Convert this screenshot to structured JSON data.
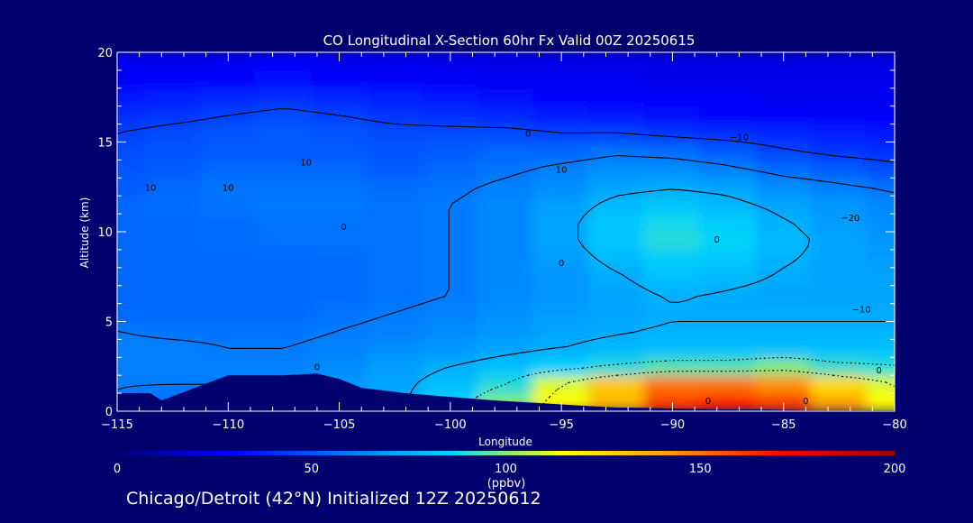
{
  "chart_data": {
    "type": "heatmap",
    "title": "CO Longitudinal X-Section 60hr  Fx Valid 00Z 20250615",
    "xlabel": "Longitude",
    "ylabel": "Altitude (km)",
    "xlim": [
      -115,
      -80
    ],
    "ylim": [
      0,
      20
    ],
    "x_ticks": [
      -115,
      -110,
      -105,
      -100,
      -95,
      -90,
      -85,
      -80
    ],
    "x_tick_labels": [
      "−115",
      "−110",
      "−105",
      "−100",
      "−95",
      "−90",
      "−85",
      "−80"
    ],
    "y_ticks": [
      0,
      5,
      10,
      15,
      20
    ],
    "y_tick_labels": [
      "0",
      "5",
      "10",
      "15",
      "20"
    ],
    "x": [
      -115,
      -112.5,
      -110,
      -107.5,
      -105,
      -102.5,
      -100,
      -97.5,
      -95,
      -92.5,
      -90,
      -87.5,
      -85,
      -82.5,
      -80
    ],
    "y": [
      0.5,
      1.5,
      2.5,
      3.5,
      4.5,
      5.5,
      6.5,
      7.5,
      8.5,
      9.5,
      10.5,
      11.5,
      12.5,
      13.5,
      14.5,
      15.5,
      16.5,
      17.5,
      18.5,
      19.5
    ],
    "z": [
      [
        60,
        58,
        58,
        62,
        68,
        72,
        85,
        100,
        115,
        135,
        160,
        165,
        160,
        140,
        115
      ],
      [
        60,
        60,
        60,
        62,
        68,
        72,
        80,
        90,
        110,
        130,
        150,
        150,
        145,
        125,
        110
      ],
      [
        62,
        62,
        62,
        62,
        65,
        70,
        75,
        80,
        85,
        90,
        95,
        95,
        100,
        92,
        90
      ],
      [
        62,
        62,
        60,
        60,
        62,
        66,
        68,
        72,
        75,
        78,
        80,
        80,
        80,
        80,
        80
      ],
      [
        60,
        58,
        58,
        58,
        60,
        62,
        65,
        68,
        72,
        74,
        76,
        76,
        76,
        76,
        76
      ],
      [
        55,
        55,
        55,
        55,
        58,
        60,
        62,
        66,
        70,
        72,
        74,
        74,
        74,
        74,
        74
      ],
      [
        55,
        55,
        55,
        55,
        56,
        58,
        60,
        64,
        68,
        72,
        76,
        74,
        72,
        72,
        72
      ],
      [
        55,
        55,
        55,
        55,
        56,
        58,
        60,
        64,
        68,
        74,
        80,
        78,
        74,
        72,
        72
      ],
      [
        55,
        55,
        55,
        55,
        56,
        58,
        60,
        64,
        70,
        78,
        84,
        82,
        76,
        72,
        70
      ],
      [
        55,
        55,
        56,
        58,
        58,
        58,
        60,
        64,
        72,
        82,
        90,
        86,
        78,
        72,
        68
      ],
      [
        55,
        55,
        56,
        58,
        58,
        58,
        60,
        64,
        72,
        82,
        88,
        84,
        76,
        70,
        66
      ],
      [
        55,
        56,
        58,
        60,
        60,
        58,
        60,
        64,
        70,
        78,
        82,
        78,
        72,
        68,
        64
      ],
      [
        52,
        55,
        58,
        58,
        58,
        56,
        58,
        62,
        66,
        72,
        74,
        72,
        66,
        62,
        58
      ],
      [
        50,
        52,
        55,
        55,
        55,
        52,
        55,
        58,
        62,
        66,
        66,
        62,
        56,
        52,
        48
      ],
      [
        48,
        50,
        52,
        52,
        52,
        50,
        52,
        55,
        55,
        58,
        56,
        52,
        46,
        42,
        40
      ],
      [
        45,
        48,
        50,
        52,
        50,
        48,
        48,
        48,
        45,
        45,
        42,
        40,
        38,
        36,
        34
      ],
      [
        40,
        42,
        45,
        48,
        45,
        42,
        40,
        38,
        36,
        34,
        32,
        30,
        30,
        28,
        28
      ],
      [
        34,
        36,
        38,
        40,
        38,
        36,
        34,
        32,
        30,
        30,
        28,
        28,
        26,
        26,
        26
      ],
      [
        28,
        30,
        30,
        32,
        30,
        28,
        28,
        26,
        26,
        26,
        24,
        24,
        24,
        24,
        24
      ],
      [
        26,
        26,
        26,
        28,
        26,
        26,
        24,
        24,
        24,
        24,
        22,
        22,
        22,
        22,
        22
      ]
    ],
    "terrain": {
      "x": [
        -115,
        -113.5,
        -113,
        -110,
        -107.5,
        -106,
        -105,
        -104,
        -102,
        -100,
        -98,
        -96,
        -94,
        -92.5,
        -92,
        -90,
        -88,
        -86,
        -84,
        -82,
        -80
      ],
      "y": [
        1.0,
        1.0,
        0.6,
        2.0,
        2.0,
        2.1,
        1.8,
        1.3,
        1.0,
        0.8,
        0.6,
        0.45,
        0.3,
        0.2,
        0.2,
        0.15,
        0.1,
        0.1,
        0.05,
        0.05,
        0.05
      ]
    },
    "contour_labels": [
      {
        "text": "10",
        "x": -106.5,
        "y": 13.9
      },
      {
        "text": "10",
        "x": -110,
        "y": 12.5
      },
      {
        "text": "10",
        "x": -113.5,
        "y": 12.5
      },
      {
        "text": "10",
        "x": -95,
        "y": 13.5
      },
      {
        "text": "0",
        "x": -96.5,
        "y": 15.5
      },
      {
        "text": "0",
        "x": -95,
        "y": 8.3
      },
      {
        "text": "0",
        "x": -104.8,
        "y": 10.3
      },
      {
        "text": "0",
        "x": -106,
        "y": 2.5
      },
      {
        "text": "0",
        "x": -88,
        "y": 9.6
      },
      {
        "text": "0",
        "x": -88.4,
        "y": 0.6
      },
      {
        "text": "0",
        "x": -84,
        "y": 0.6
      },
      {
        "text": "0",
        "x": -80.7,
        "y": 2.3
      },
      {
        "text": "−10",
        "x": -87,
        "y": 15.3
      },
      {
        "text": "−20",
        "x": -82,
        "y": 10.8
      },
      {
        "text": "−10",
        "x": -81.5,
        "y": 5.7
      }
    ],
    "colorbar": {
      "min": 0,
      "max": 200,
      "ticks": [
        0,
        50,
        100,
        150,
        200
      ],
      "tick_labels": [
        "0",
        "50",
        "100",
        "150",
        "200"
      ],
      "label": "(ppbv)",
      "stops": [
        "#00007a",
        "#0000ff",
        "#0070ff",
        "#00d4ff",
        "#ffff00",
        "#ff9900",
        "#ff0000",
        "#a00000"
      ]
    }
  },
  "footer": "Chicago/Detroit (42°N) Initialized 12Z 20250612"
}
